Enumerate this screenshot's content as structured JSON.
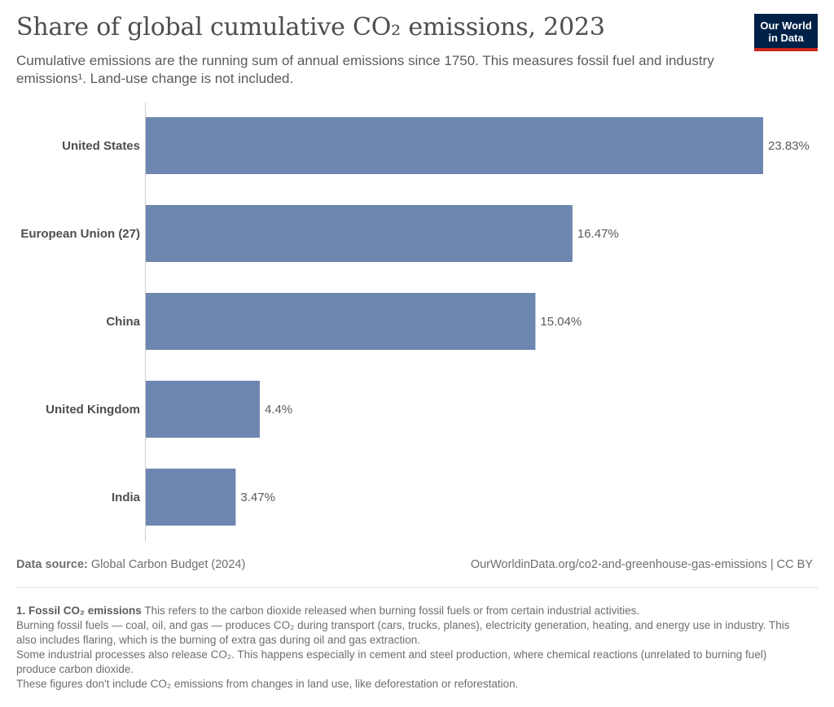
{
  "header": {
    "title": "Share of global cumulative CO₂ emissions, 2023",
    "subtitle": "Cumulative emissions are the running sum of annual emissions since 1750. This measures fossil fuel and industry emissions¹. Land-use change is not included.",
    "logo_line1": "Our World",
    "logo_line2": "in Data"
  },
  "chart_data": {
    "type": "bar",
    "orientation": "horizontal",
    "categories": [
      "United States",
      "European Union (27)",
      "China",
      "United Kingdom",
      "India"
    ],
    "values": [
      23.83,
      16.47,
      15.04,
      4.4,
      3.47
    ],
    "value_labels": [
      "23.83%",
      "16.47%",
      "15.04%",
      "4.4%",
      "3.47%"
    ],
    "unit": "%",
    "bar_color": "#6d87b0",
    "xlim": [
      0,
      23.83
    ]
  },
  "footer": {
    "source_label": "Data source:",
    "source_text": "Global Carbon Budget (2024)",
    "url_text": "OurWorldinData.org/co2-and-greenhouse-gas-emissions | CC BY"
  },
  "notes": {
    "heading": "1. Fossil CO₂ emissions",
    "line1": "This refers to the carbon dioxide released when burning fossil fuels or from certain industrial activities.",
    "line2": "Burning fossil fuels — coal, oil, and gas — produces CO₂ during transport (cars, trucks, planes), electricity generation, heating, and energy use in industry. This also includes flaring, which is the burning of extra gas during oil and gas extraction.",
    "line3": "Some industrial processes also release CO₂. This happens especially in cement and steel production, where chemical reactions (unrelated to burning fuel) produce carbon dioxide.",
    "line4": "These figures don't include CO₂ emissions from changes in land use, like deforestation or reforestation."
  }
}
